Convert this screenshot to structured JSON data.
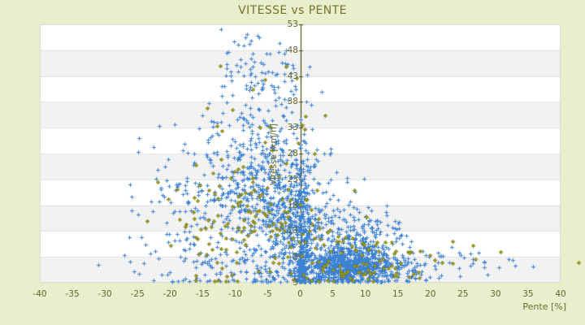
{
  "chart_data": {
    "type": "scatter",
    "title": "VITESSE vs PENTE",
    "xlabel": "Pente [%]",
    "ylabel": "Vitesse [km/h]",
    "xlim": [
      -40,
      40
    ],
    "ylim": [
      3,
      53
    ],
    "x_ticks": [
      -40,
      -35,
      -30,
      -25,
      -20,
      -15,
      -10,
      -5,
      0,
      5,
      10,
      15,
      20,
      25,
      30,
      35,
      40
    ],
    "y_ticks": [
      3,
      8,
      13,
      18,
      23,
      28,
      33,
      38,
      43,
      48,
      53
    ],
    "grid": "alternating horizontal bands, y-axis line drawn at x=0",
    "legend": "none",
    "series": [
      {
        "name": "vitesse-points-blue",
        "marker": "plus",
        "color": "#3E82D4"
      },
      {
        "name": "vitesse-points-olive",
        "marker": "diamond",
        "color": "#A0A01E",
        "stroke": "#6B6B08"
      }
    ],
    "distribution": {
      "seed": 1337,
      "clusters": [
        {
          "series": 0,
          "n": 700,
          "cx": 7.0,
          "cy": 6.3,
          "sx": 3.4,
          "sy": 1.9
        },
        {
          "series": 0,
          "n": 260,
          "cx": 8.0,
          "cy": 11.0,
          "sx": 4.6,
          "sy": 3.8
        },
        {
          "series": 0,
          "n": 230,
          "cx": 0.2,
          "cy": 13.0,
          "sx": 0.9,
          "sy": 8.0
        },
        {
          "series": 0,
          "n": 80,
          "cx": 0.05,
          "cy": 5.4,
          "sx": 0.3,
          "sy": 1.7
        },
        {
          "series": 0,
          "n": 450,
          "cx": -3.5,
          "cy": 16.5,
          "sx": 4.2,
          "sy": 6.5
        },
        {
          "series": 0,
          "n": 260,
          "cx": -7.0,
          "cy": 26.0,
          "sx": 4.6,
          "sy": 6.5
        },
        {
          "series": 0,
          "n": 90,
          "cx": -6.5,
          "cy": 43.0,
          "sx": 3.6,
          "sy": 4.5
        },
        {
          "series": 0,
          "n": 115,
          "cx": -16.5,
          "cy": 17.0,
          "sx": 5.0,
          "sy": 7.5
        },
        {
          "series": 0,
          "n": 95,
          "cx": 14.5,
          "cy": 6.0,
          "sx": 3.8,
          "sy": 2.2
        },
        {
          "series": 0,
          "n": 28,
          "cx": 23.0,
          "cy": 6.8,
          "sx": 4.5,
          "sy": 1.8
        },
        {
          "series": 0,
          "n": 85,
          "cx": -9.5,
          "cy": 5.8,
          "sx": 5.5,
          "sy": 2.2
        },
        {
          "series": 1,
          "n": 80,
          "cx": -6.0,
          "cy": 15.5,
          "sx": 6.0,
          "sy": 6.5
        },
        {
          "series": 1,
          "n": 50,
          "cx": 5.0,
          "cy": 9.0,
          "sx": 5.0,
          "sy": 3.8
        },
        {
          "series": 1,
          "n": 40,
          "cx": -14.0,
          "cy": 17.0,
          "sx": 5.5,
          "sy": 8.0
        },
        {
          "series": 1,
          "n": 32,
          "cx": 9.0,
          "cy": 5.3,
          "sx": 5.0,
          "sy": 1.6
        },
        {
          "series": 1,
          "n": 26,
          "cx": -4.5,
          "cy": 29.0,
          "sx": 4.8,
          "sy": 7.5
        },
        {
          "series": 1,
          "n": 20,
          "cx": 15.5,
          "cy": 8.0,
          "sx": 5.5,
          "sy": 2.6
        }
      ],
      "extra_points": [
        {
          "series": 0,
          "p": -31.0,
          "v": 6.5
        },
        {
          "series": 0,
          "p": -27.0,
          "v": 8.3
        },
        {
          "series": 0,
          "p": -25.5,
          "v": 5.2
        },
        {
          "series": 0,
          "p": -24.0,
          "v": 6.8
        },
        {
          "series": 0,
          "p": -20.5,
          "v": 12.5
        },
        {
          "series": 0,
          "p": 30.5,
          "v": 6.0
        },
        {
          "series": 0,
          "p": 33.0,
          "v": 6.3
        },
        {
          "series": 0,
          "p": 35.8,
          "v": 6.2
        },
        {
          "series": 1,
          "p": -23.5,
          "v": 15.0
        },
        {
          "series": 1,
          "p": 23.4,
          "v": 11.0
        },
        {
          "series": 1,
          "p": 26.5,
          "v": 10.2
        },
        {
          "series": 1,
          "p": 30.8,
          "v": 9.0
        },
        {
          "series": 1,
          "p": 42.7,
          "v": 6.9
        }
      ]
    }
  },
  "colors": {
    "background": "#E9EFCD",
    "band_white": "#FFFFFF",
    "band_gray": "#F2F2F2",
    "band_separator": "#E3E3E3",
    "plot_border": "#D8D8D8",
    "axis_line": "#4A4A14",
    "title_text": "#73732B",
    "tick_text": "#64642C",
    "blue_marker": "#3E82D4",
    "olive_marker": "#A0A01E",
    "olive_marker_stroke": "#6B6B08"
  }
}
